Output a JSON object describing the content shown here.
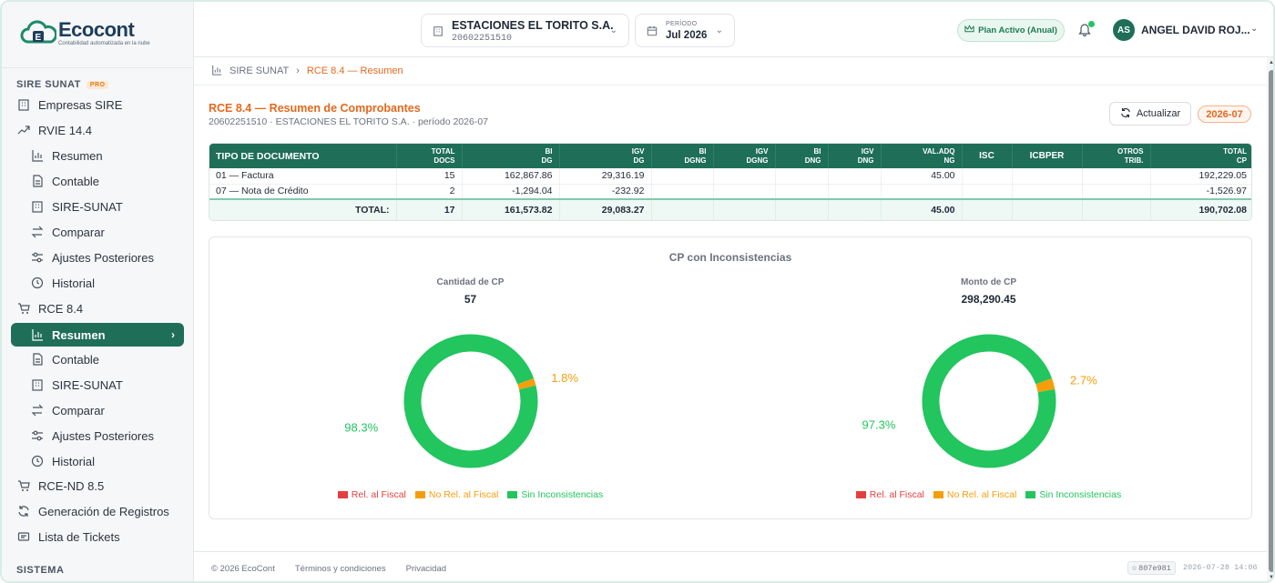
{
  "brand": {
    "name": "Ecocont",
    "tagline": "Contabilidad automatizada en la nube"
  },
  "sidebar": {
    "section_sire": "SIRE SUNAT",
    "pro_badge": "PRO",
    "items": [
      {
        "label": "Empresas SIRE",
        "icon": "building-icon"
      },
      {
        "label": "RVIE 14.4",
        "icon": "trend-icon"
      },
      {
        "label": "Resumen",
        "icon": "bar-chart-icon"
      },
      {
        "label": "Contable",
        "icon": "document-icon"
      },
      {
        "label": "SIRE-SUNAT",
        "icon": "building-icon"
      },
      {
        "label": "Comparar",
        "icon": "swap-icon"
      },
      {
        "label": "Ajustes Posteriores",
        "icon": "sliders-icon"
      },
      {
        "label": "Historial",
        "icon": "history-icon"
      },
      {
        "label": "RCE 8.4",
        "icon": "cart-icon"
      },
      {
        "label": "Resumen",
        "icon": "bar-chart-icon",
        "active": true
      },
      {
        "label": "Contable",
        "icon": "document-icon"
      },
      {
        "label": "SIRE-SUNAT",
        "icon": "building-icon"
      },
      {
        "label": "Comparar",
        "icon": "swap-icon"
      },
      {
        "label": "Ajustes Posteriores",
        "icon": "sliders-icon"
      },
      {
        "label": "Historial",
        "icon": "history-icon"
      },
      {
        "label": "RCE-ND 8.5",
        "icon": "cart-icon"
      },
      {
        "label": "Generación de Registros",
        "icon": "refresh-icon"
      },
      {
        "label": "Lista de Tickets",
        "icon": "ticket-icon"
      }
    ],
    "section_system": "SISTEMA"
  },
  "topbar": {
    "company_name": "ESTACIONES EL TORITO S.A.",
    "company_ruc": "20602251510",
    "period_label": "PERÍODO",
    "period_value": "Jul 2026",
    "plan": "Plan Activo (Anual)",
    "avatar_initials": "AS",
    "user_name": "ANGEL DAVID ROJ..."
  },
  "breadcrumb": {
    "root": "SIRE SUNAT",
    "current": "RCE 8.4 — Resumen"
  },
  "page": {
    "title": "RCE 8.4 — Resumen de Comprobantes",
    "subtitle": "20602251510 · ESTACIONES EL TORITO S.A. · período 2026-07",
    "refresh_label": "Actualizar",
    "period_badge": "2026-07"
  },
  "table": {
    "headers": [
      [
        "TIPO DE DOCUMENTO"
      ],
      [
        "TOTAL",
        "DOCS"
      ],
      [
        "BI",
        "DG"
      ],
      [
        "IGV",
        "DG"
      ],
      [
        "BI",
        "DGNG"
      ],
      [
        "IGV",
        "DGNG"
      ],
      [
        "BI",
        "DNG"
      ],
      [
        "IGV",
        "DNG"
      ],
      [
        "VAL.ADQ",
        "NG"
      ],
      [
        "ISC"
      ],
      [
        "ICBPER"
      ],
      [
        "OTROS",
        "TRIB."
      ],
      [
        "TOTAL",
        "CP"
      ]
    ],
    "rows": [
      [
        "01 — Factura",
        "15",
        "162,867.86",
        "29,316.19",
        "",
        "",
        "",
        "",
        "45.00",
        "",
        "",
        "",
        "192,229.05"
      ],
      [
        "07 — Nota de Crédito",
        "2",
        "-1,294.04",
        "-232.92",
        "",
        "",
        "",
        "",
        "",
        "",
        "",
        "",
        "-1,526.97"
      ]
    ],
    "total": [
      "TOTAL:",
      "17",
      "161,573.82",
      "29,083.27",
      "",
      "",
      "",
      "",
      "45.00",
      "",
      "",
      "",
      "190,702.08"
    ]
  },
  "charts_panel": {
    "title": "CP con Inconsistencias"
  },
  "chart_data": [
    {
      "type": "pie",
      "title": "Cantidad de CP",
      "total": "57",
      "categories": [
        "Rel. al Fiscal",
        "No Rel. al Fiscal",
        "Sin Inconsistencias"
      ],
      "values": [
        0,
        1.8,
        98.3
      ],
      "value_labels": [
        "",
        "1.8%",
        "98.3%"
      ],
      "colors": [
        "#e53e3e",
        "#f59e0b",
        "#22c55e"
      ],
      "legend": "bottom"
    },
    {
      "type": "pie",
      "title": "Monto de CP",
      "total": "298,290.45",
      "categories": [
        "Rel. al Fiscal",
        "No Rel. al Fiscal",
        "Sin Inconsistencias"
      ],
      "values": [
        0,
        2.7,
        97.3
      ],
      "value_labels": [
        "",
        "2.7%",
        "97.3%"
      ],
      "colors": [
        "#e53e3e",
        "#f59e0b",
        "#22c55e"
      ],
      "legend": "bottom"
    }
  ],
  "footer": {
    "copyright": "© 2026 EcoCont",
    "terms": "Términos y condiciones",
    "privacy": "Privacidad",
    "build": "807e981",
    "timestamp": "2026-07-28 14:06"
  }
}
